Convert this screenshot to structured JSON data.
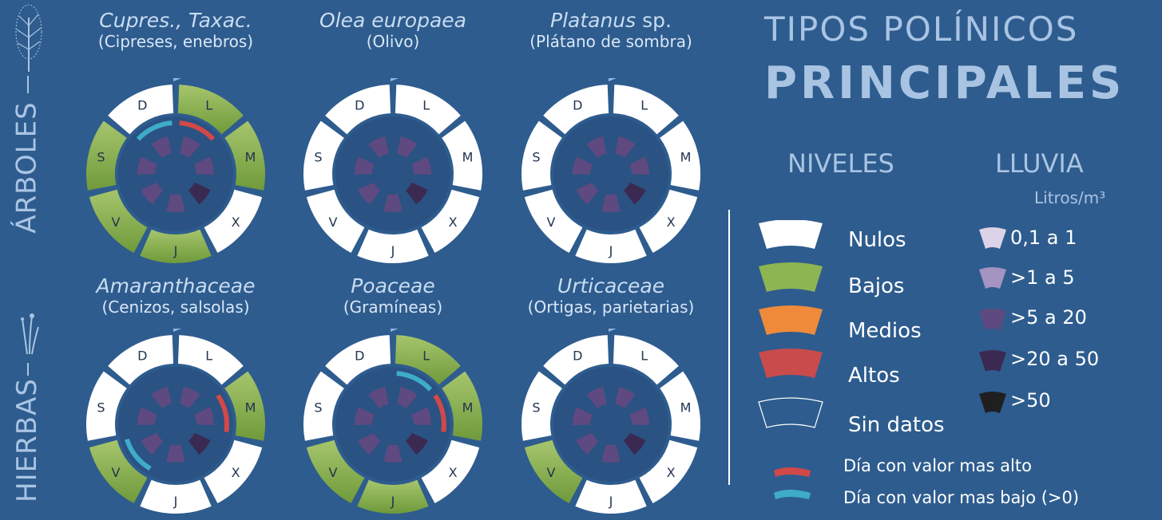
{
  "side_labels": {
    "trees": "ÁRBOLES",
    "herbs": "HIERBAS"
  },
  "plants": [
    {
      "title": "Cupres., Taxac.",
      "title_suffix": "",
      "subtitle": "(Cipreses, enebros)",
      "levels": [
        "bajo",
        "bajo",
        "nulo",
        "bajo",
        "bajo",
        "bajo",
        "nulo"
      ],
      "max_day": "L",
      "min_day": "D"
    },
    {
      "title": "Olea europaea",
      "title_suffix": "",
      "subtitle": "(Olivo)",
      "levels": [
        "nulo",
        "nulo",
        "nulo",
        "nulo",
        "nulo",
        "nulo",
        "nulo"
      ],
      "max_day": "",
      "min_day": ""
    },
    {
      "title": "Platanus",
      "title_suffix": " sp.",
      "subtitle": "(Plátano de sombra)",
      "levels": [
        "nulo",
        "nulo",
        "nulo",
        "nulo",
        "nulo",
        "nulo",
        "nulo"
      ],
      "max_day": "",
      "min_day": ""
    },
    {
      "title": "Amaranthaceae",
      "title_suffix": "",
      "subtitle": "(Cenizos, salsolas)",
      "levels": [
        "nulo",
        "bajo",
        "nulo",
        "nulo",
        "bajo",
        "nulo",
        "nulo"
      ],
      "max_day": "M",
      "min_day": "V"
    },
    {
      "title": "Poaceae",
      "title_suffix": "",
      "subtitle": "(Gramíneas)",
      "levels": [
        "bajo",
        "bajo",
        "nulo",
        "bajo",
        "bajo",
        "nulo",
        "nulo"
      ],
      "max_day": "M",
      "min_day": "L"
    },
    {
      "title": "Urticaceae",
      "title_suffix": "",
      "subtitle": "(Ortigas, parietarias)",
      "levels": [
        "nulo",
        "nulo",
        "nulo",
        "nulo",
        "bajo",
        "nulo",
        "nulo"
      ],
      "max_day": "",
      "min_day": ""
    }
  ],
  "days": [
    "L",
    "M",
    "X",
    "J",
    "V",
    "S",
    "D"
  ],
  "rain_by_day": [
    "5-20",
    "5-20",
    "20-50",
    "5-20",
    "5-20",
    "5-20",
    "5-20"
  ],
  "header": {
    "line1": "TIPOS POLÍNICOS",
    "line2": "PRINCIPALES"
  },
  "niveles": {
    "title": "NIVELES",
    "items": [
      {
        "key": "nulo",
        "label": "Nulos",
        "color": "#ffffff"
      },
      {
        "key": "bajo",
        "label": "Bajos",
        "color": "#8db552"
      },
      {
        "key": "medio",
        "label": "Medios",
        "color": "#ee8a3a"
      },
      {
        "key": "alto",
        "label": "Altos",
        "color": "#c94b4b"
      },
      {
        "key": "sin",
        "label": "Sin datos",
        "color": "none"
      }
    ],
    "max_label": "Día con valor mas alto",
    "min_label": "Día con valor mas bajo (>0)",
    "max_color": "#d04848",
    "min_color": "#3eacc9"
  },
  "lluvia": {
    "title": "LLUVIA",
    "units": "Litros/m³",
    "items": [
      {
        "key": "0.1-1",
        "label": "0,1 a 1",
        "color": "#ddd3e8"
      },
      {
        "key": "1-5",
        "label": ">1 a 5",
        "color": "#a593c2"
      },
      {
        "key": "5-20",
        "label": ">5 a 20",
        "color": "#5e4a80"
      },
      {
        "key": "20-50",
        "label": ">20 a 50",
        "color": "#3a2a52"
      },
      {
        "key": "50+",
        "label": ">50",
        "color": "#1f1f1f"
      }
    ]
  }
}
